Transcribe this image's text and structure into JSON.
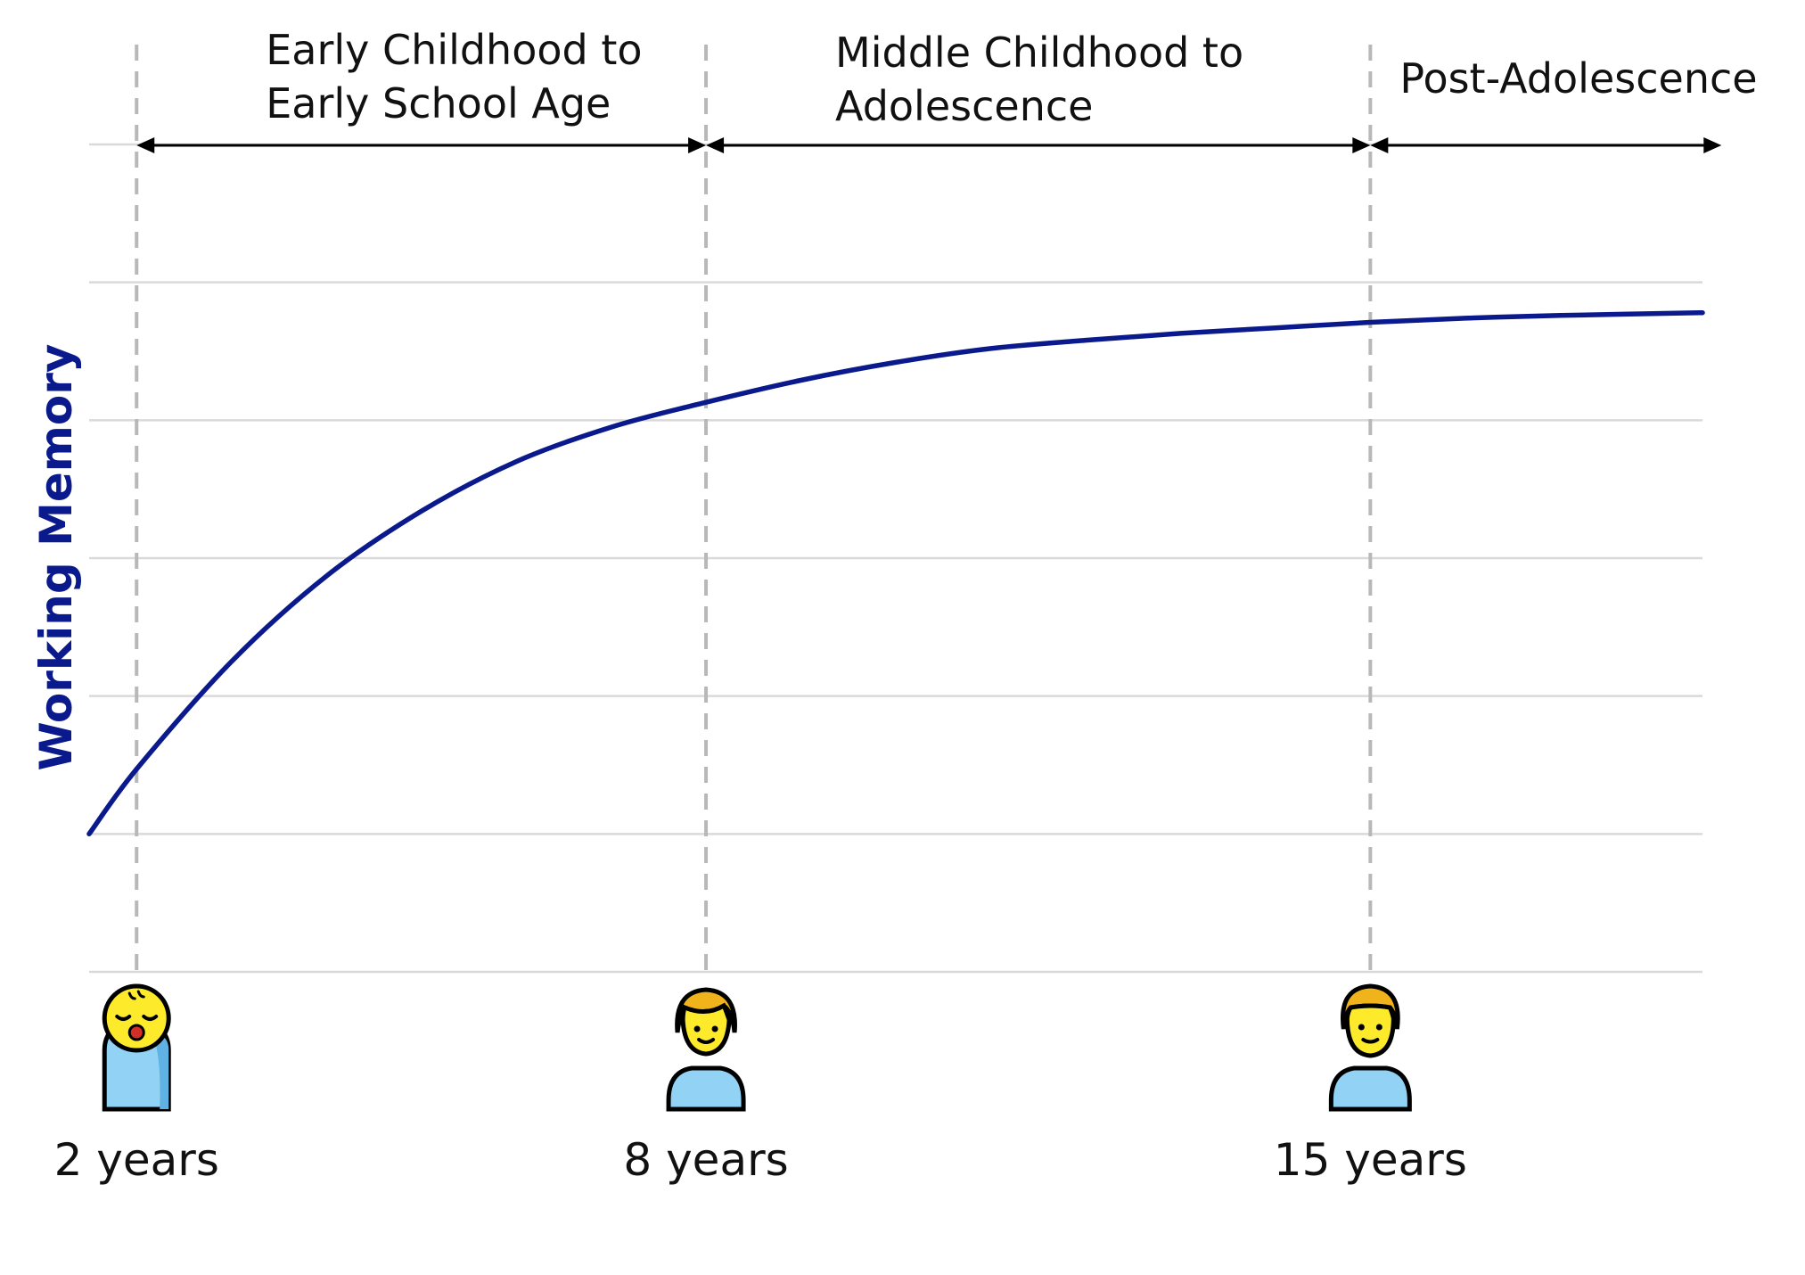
{
  "chart_data": {
    "type": "line",
    "title": "",
    "ylabel": "Working Memory",
    "xlabel": "",
    "grid": true,
    "line_color": "#0a1a8c",
    "grid_color": "#d9d9d9",
    "marker_color": "#b8b8b8",
    "age_markers": [
      {
        "label": "2 years",
        "age": 2,
        "icon": "baby-icon"
      },
      {
        "label": "8 years",
        "age": 8,
        "icon": "child-icon"
      },
      {
        "label": "15 years",
        "age": 15,
        "icon": "person-icon"
      }
    ],
    "periods": [
      {
        "label_lines": [
          "Early Childhood to",
          "Early School Age"
        ],
        "from": 2,
        "to": 8
      },
      {
        "label_lines": [
          "Middle Childhood to",
          "Adolescence"
        ],
        "from": 8,
        "to": 15
      },
      {
        "label_lines": [
          "Post-Adolescence"
        ],
        "from": 15,
        "to": 18.7
      }
    ],
    "xlim": [
      1.5,
      18.5
    ],
    "ylim": [
      0,
      6
    ],
    "series": [
      {
        "x": [
          1.5,
          2,
          3,
          4,
          5,
          6,
          7,
          8,
          9,
          10,
          11,
          12,
          13,
          14,
          15,
          16,
          17,
          18.5
        ],
        "values": [
          1.0,
          1.47,
          2.25,
          2.87,
          3.34,
          3.7,
          3.95,
          4.13,
          4.29,
          4.42,
          4.52,
          4.58,
          4.63,
          4.67,
          4.71,
          4.74,
          4.76,
          4.78
        ]
      }
    ]
  }
}
